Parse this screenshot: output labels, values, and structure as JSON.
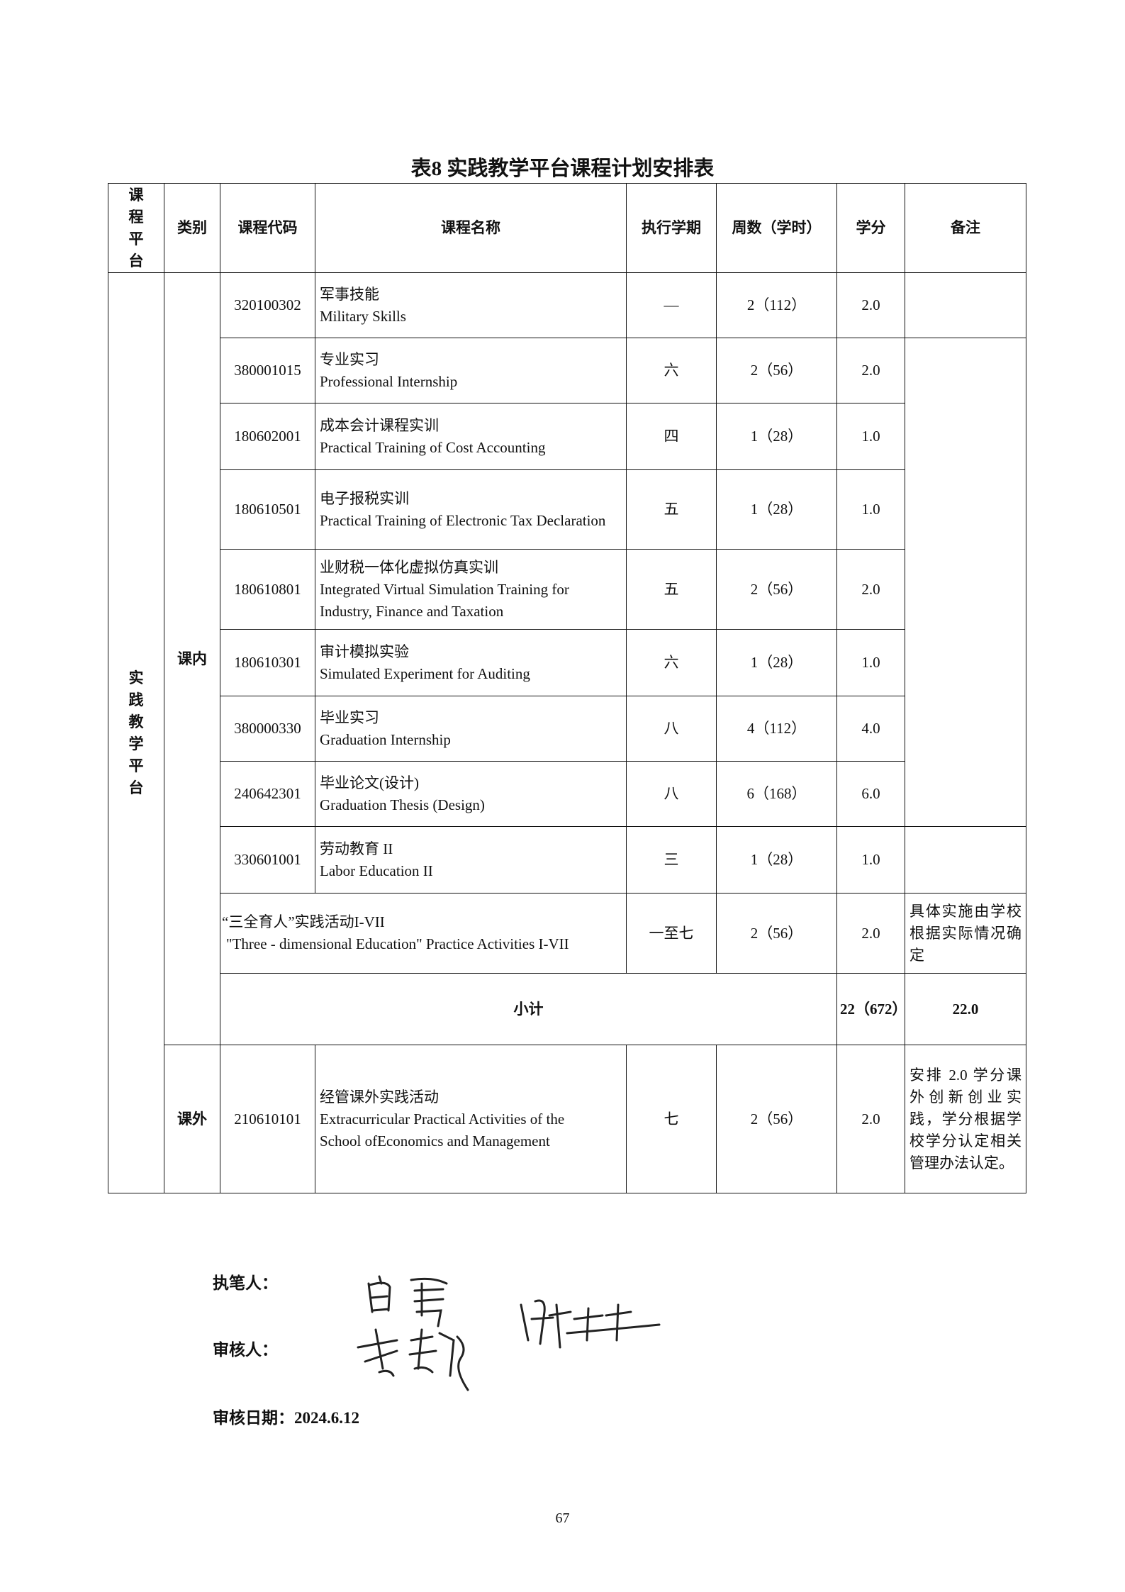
{
  "title": "表8 实践教学平台课程计划安排表",
  "table": {
    "headers": [
      "课程平台",
      "类别",
      "课程代码",
      "课程名称",
      "执行学期",
      "周数（学时）",
      "学分",
      "备注"
    ],
    "platform": "实践教学平台",
    "categories": {
      "inner": "课内",
      "outer": "课外"
    },
    "rows": [
      {
        "code": "320100302",
        "name_cn": "军事技能",
        "name_en": "Military Skills",
        "term": "—",
        "weeks": "2（112）",
        "credit": "2.0"
      },
      {
        "code": "380001015",
        "name_cn": "专业实习",
        "name_en": "Professional Internship",
        "term": "六",
        "weeks": "2（56）",
        "credit": "2.0"
      },
      {
        "code": "180602001",
        "name_cn": "成本会计课程实训",
        "name_en": "Practical Training of Cost Accounting",
        "term": "四",
        "weeks": "1（28）",
        "credit": "1.0"
      },
      {
        "code": "180610501",
        "name_cn": "电子报税实训",
        "name_en": "Practical Training of Electronic Tax Declaration",
        "term": "五",
        "weeks": "1（28）",
        "credit": "1.0"
      },
      {
        "code": "180610801",
        "name_cn": "业财税一体化虚拟仿真实训",
        "name_en": "Integrated Virtual Simulation Training for Industry, Finance and Taxation",
        "term": "五",
        "weeks": "2（56）",
        "credit": "2.0"
      },
      {
        "code": "180610301",
        "name_cn": "审计模拟实验",
        "name_en": "Simulated Experiment for Auditing",
        "term": "六",
        "weeks": "1（28）",
        "credit": "1.0"
      },
      {
        "code": "380000330",
        "name_cn": "毕业实习",
        "name_en": "Graduation Internship",
        "term": "八",
        "weeks": "4（112）",
        "credit": "4.0"
      },
      {
        "code": "240642301",
        "name_cn": "毕业论文(设计)",
        "name_en": "Graduation Thesis (Design)",
        "term": "八",
        "weeks": "6（168）",
        "credit": "6.0"
      },
      {
        "code": "330601001",
        "name_cn": "劳动教育 II",
        "name_en": "Labor Education II",
        "term": "三",
        "weeks": "1（28）",
        "credit": "1.0"
      }
    ],
    "three_edu": {
      "name_cn": "“三全育人”实践活动I-VII",
      "name_en": "\"Three - dimensional Education\" Practice Activities I-VII",
      "term": "一至七",
      "weeks": "2（56）",
      "credit": "2.0",
      "remark": "具体实施由学校根据实际情况确定"
    },
    "subtotal": {
      "label": "小计",
      "weeks": "22（672）",
      "credit": "22.0"
    },
    "outer_row": {
      "code": "210610101",
      "name_cn": "经管课外实践活动",
      "name_en1": "Extracurricular Practical Activities of the",
      "name_en2": "School ofEconomics and Management",
      "term": "七",
      "weeks": "2（56）",
      "credit": "2.0",
      "remark": "安排 2.0 学分课外创新创业实践，学分根据学校学分认定相关管理办法认定。"
    }
  },
  "footer": {
    "writer_label": "执笔人：",
    "reviewer_label": "审核人：",
    "date_label": "审核日期：",
    "date": "2024.6.12",
    "page_number": "67"
  }
}
